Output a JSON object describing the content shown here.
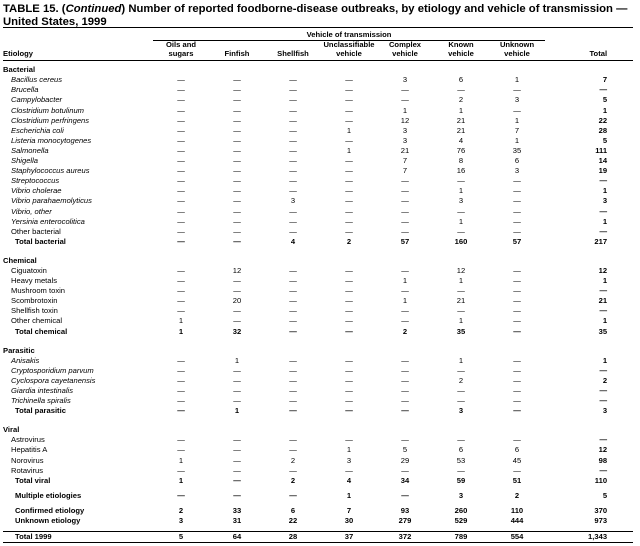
{
  "title": {
    "prefix": "TABLE 15. (",
    "continued": "Continued",
    "text": ") Number of reported foodborne-disease outbreaks, by etiology and vehicle of transmission — United States, 1999"
  },
  "table": {
    "vehicle_header": "Vehicle of transmission",
    "columns": [
      "Etiology",
      "Oils and\nsugars",
      "Finfish",
      "Shellfish",
      "Unclassifiable\nvehicle",
      "Complex\nvehicle",
      "Known\nvehicle",
      "Unknown\nvehicle",
      "Total"
    ],
    "sections": [
      {
        "name": "Bacterial",
        "rows": [
          {
            "label": "Bacillus cereus",
            "italic": true,
            "values": [
              "—",
              "—",
              "—",
              "—",
              3,
              6,
              1,
              7
            ]
          },
          {
            "label": "Brucella",
            "italic": true,
            "values": [
              "—",
              "—",
              "—",
              "—",
              "—",
              "—",
              "—",
              "—"
            ]
          },
          {
            "label": "Campylobacter",
            "italic": true,
            "values": [
              "—",
              "—",
              "—",
              "—",
              "—",
              2,
              3,
              5
            ]
          },
          {
            "label": "Clostridium botulinum",
            "italic": true,
            "values": [
              "—",
              "—",
              "—",
              "—",
              1,
              1,
              "—",
              1
            ]
          },
          {
            "label": "Clostridium perfringens",
            "italic": true,
            "values": [
              "—",
              "—",
              "—",
              "—",
              12,
              21,
              1,
              22
            ]
          },
          {
            "label": "Escherichia coli",
            "italic": true,
            "values": [
              "—",
              "—",
              "—",
              1,
              3,
              21,
              7,
              28
            ]
          },
          {
            "label": "Listeria monocytogenes",
            "italic": true,
            "values": [
              "—",
              "—",
              "—",
              "—",
              3,
              4,
              1,
              5
            ]
          },
          {
            "label": "Salmonella",
            "italic": true,
            "values": [
              "—",
              "—",
              "—",
              1,
              21,
              76,
              35,
              111
            ]
          },
          {
            "label": "Shigella",
            "italic": true,
            "values": [
              "—",
              "—",
              "—",
              "—",
              7,
              8,
              6,
              14
            ]
          },
          {
            "label": "Staphylococcus aureus",
            "italic": true,
            "values": [
              "—",
              "—",
              "—",
              "—",
              7,
              16,
              3,
              19
            ]
          },
          {
            "label": "Streptococcus",
            "italic": true,
            "values": [
              "—",
              "—",
              "—",
              "—",
              "—",
              "—",
              "—",
              "—"
            ]
          },
          {
            "label": "Vibrio cholerae",
            "italic": true,
            "values": [
              "—",
              "—",
              "—",
              "—",
              "—",
              1,
              "—",
              1
            ]
          },
          {
            "label": "Vibrio parahaemolyticus",
            "italic": true,
            "values": [
              "—",
              "—",
              3,
              "—",
              "—",
              3,
              "—",
              3
            ]
          },
          {
            "label": "Vibrio, other",
            "italic": true,
            "values": [
              "—",
              "—",
              "—",
              "—",
              "—",
              "—",
              "—",
              "—"
            ]
          },
          {
            "label": "Yersinia enterocolitica",
            "italic": true,
            "values": [
              "—",
              "—",
              "—",
              "—",
              "—",
              1,
              "—",
              1
            ]
          },
          {
            "label": "Other bacterial",
            "values": [
              "—",
              "—",
              "—",
              "—",
              "—",
              "—",
              "—",
              "—"
            ]
          },
          {
            "label": "Total bacterial",
            "total": true,
            "values": [
              "—",
              "—",
              4,
              2,
              57,
              160,
              57,
              217
            ]
          }
        ]
      },
      {
        "name": "Chemical",
        "rows": [
          {
            "label": "Ciguatoxin",
            "values": [
              "—",
              12,
              "—",
              "—",
              "—",
              12,
              "—",
              12
            ]
          },
          {
            "label": "Heavy metals",
            "values": [
              "—",
              "—",
              "—",
              "—",
              1,
              1,
              "—",
              1
            ]
          },
          {
            "label": "Mushroom toxin",
            "values": [
              "—",
              "—",
              "—",
              "—",
              "—",
              "—",
              "—",
              "—"
            ]
          },
          {
            "label": "Scombrotoxin",
            "values": [
              "—",
              20,
              "—",
              "—",
              1,
              21,
              "—",
              21
            ]
          },
          {
            "label": "Shellfish toxin",
            "values": [
              "—",
              "—",
              "—",
              "—",
              "—",
              "—",
              "—",
              "—"
            ]
          },
          {
            "label": "Other chemical",
            "values": [
              1,
              "—",
              "—",
              "—",
              "—",
              1,
              "—",
              1
            ]
          },
          {
            "label": "Total chemical",
            "total": true,
            "values": [
              1,
              32,
              "—",
              "—",
              2,
              35,
              "—",
              35
            ]
          }
        ]
      },
      {
        "name": "Parasitic",
        "rows": [
          {
            "label": "Anisakis",
            "italic": true,
            "values": [
              "—",
              1,
              "—",
              "—",
              "—",
              1,
              "—",
              1
            ]
          },
          {
            "label": "Cryptosporidium parvum",
            "italic": true,
            "values": [
              "—",
              "—",
              "—",
              "—",
              "—",
              "—",
              "—",
              "—"
            ]
          },
          {
            "label": "Cyclospora cayetanensis",
            "italic": true,
            "values": [
              "—",
              "—",
              "—",
              "—",
              "—",
              2,
              "—",
              2
            ]
          },
          {
            "label": "Giardia intestinalis",
            "italic": true,
            "values": [
              "—",
              "—",
              "—",
              "—",
              "—",
              "—",
              "—",
              "—"
            ]
          },
          {
            "label": "Trichinella spiralis",
            "italic": true,
            "values": [
              "—",
              "—",
              "—",
              "—",
              "—",
              "—",
              "—",
              "—"
            ]
          },
          {
            "label": "Total parasitic",
            "total": true,
            "values": [
              "—",
              1,
              "—",
              "—",
              "—",
              3,
              "—",
              3
            ]
          }
        ]
      },
      {
        "name": "Viral",
        "rows": [
          {
            "label": "Astrovirus",
            "values": [
              "—",
              "—",
              "—",
              "—",
              "—",
              "—",
              "—",
              "—"
            ]
          },
          {
            "label": "Hepatitis A",
            "values": [
              "—",
              "—",
              "—",
              1,
              5,
              6,
              6,
              12
            ]
          },
          {
            "label": "Norovirus",
            "values": [
              1,
              "—",
              2,
              3,
              29,
              53,
              45,
              98
            ]
          },
          {
            "label": "Rotavirus",
            "values": [
              "—",
              "—",
              "—",
              "—",
              "—",
              "—",
              "—",
              "—"
            ]
          },
          {
            "label": "Total viral",
            "total": true,
            "values": [
              1,
              "—",
              2,
              4,
              34,
              59,
              51,
              110
            ]
          }
        ]
      },
      {
        "rows": [
          {
            "label": "Multiple etiologies",
            "total": true,
            "values": [
              "—",
              "—",
              "—",
              1,
              "—",
              3,
              2,
              5
            ]
          }
        ]
      },
      {
        "rows": [
          {
            "label": "Confirmed etiology",
            "total": true,
            "values": [
              2,
              33,
              6,
              7,
              93,
              260,
              110,
              370
            ]
          },
          {
            "label": "Unknown etiology",
            "total": true,
            "values": [
              3,
              31,
              22,
              30,
              279,
              529,
              444,
              973
            ]
          }
        ]
      },
      {
        "rows": [
          {
            "label": "Total 1999",
            "total": true,
            "values": [
              5,
              64,
              28,
              37,
              372,
              789,
              554,
              "1,343"
            ]
          }
        ]
      }
    ]
  }
}
